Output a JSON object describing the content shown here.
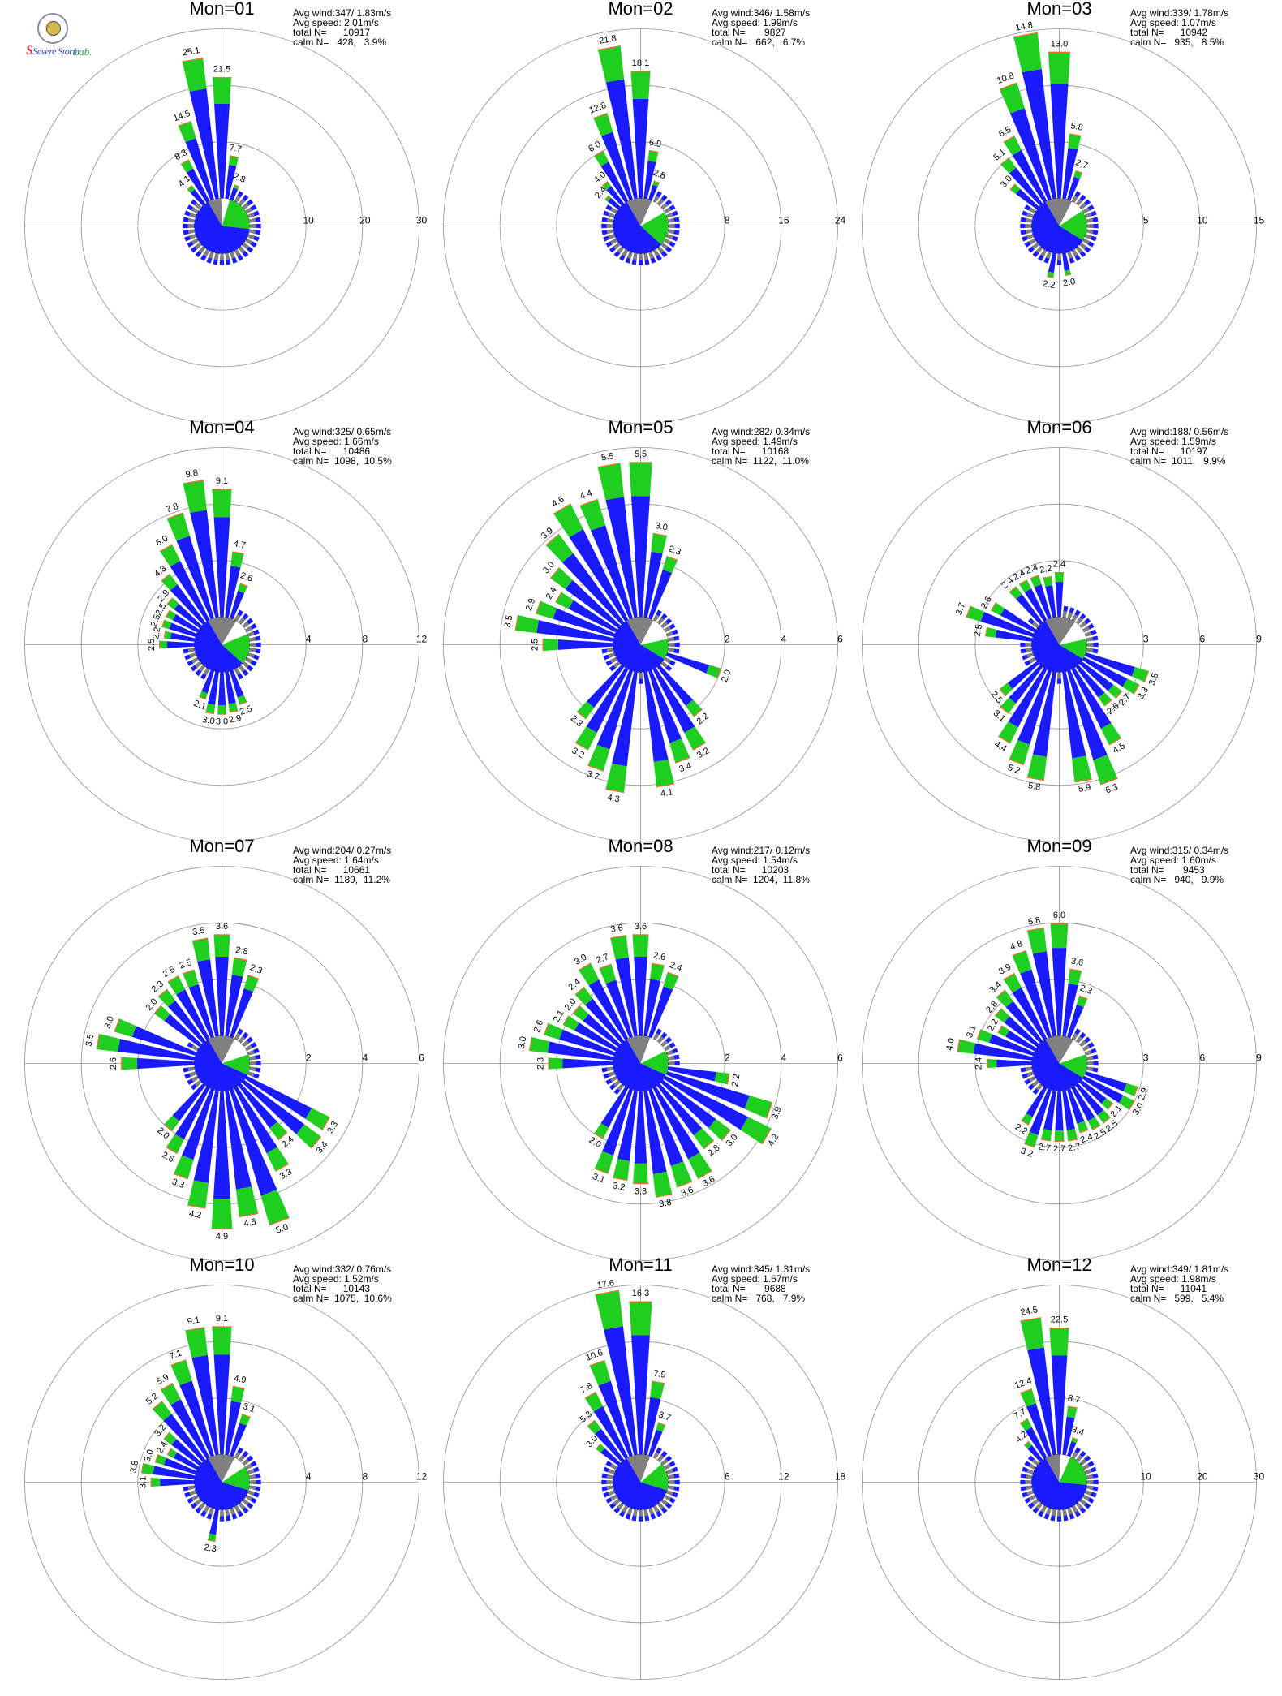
{
  "colors": {
    "blue": "#1a1aff",
    "green": "#1fcf1f",
    "orange": "#ff6a30",
    "grey": "#808080",
    "grid": "#909090"
  },
  "logo": {
    "text1": "Severe Storm",
    "text2": "Lab."
  },
  "chart_data": [
    {
      "type": "wind-rose",
      "title": "Mon=01",
      "stats": [
        "Avg wind:347/ 1.83m/s",
        "Avg speed: 2.01m/s",
        "total N=      10917",
        "calm N=   428,   3.9%"
      ],
      "rmax": 30,
      "ring_labels": [
        "10",
        "20",
        "30"
      ],
      "bars": [
        [
          0,
          21.5
        ],
        [
          350,
          25.1
        ],
        [
          340,
          14.5
        ],
        [
          330,
          8.3
        ],
        [
          320,
          4.1
        ],
        [
          10,
          7.7
        ],
        [
          20,
          2.8
        ]
      ],
      "calm_pie": {
        "blue": 0.65,
        "green": 0.22,
        "grey": 0.08,
        "white": 0.05
      }
    },
    {
      "type": "wind-rose",
      "title": "Mon=02",
      "stats": [
        "Avg wind:346/ 1.58m/s",
        "Avg speed: 1.99m/s",
        "total N=       9827",
        "calm N=   662,   6.7%"
      ],
      "rmax": 24,
      "ring_labels": [
        "8",
        "16",
        "24"
      ],
      "bars": [
        [
          0,
          18.1
        ],
        [
          350,
          21.8
        ],
        [
          340,
          12.8
        ],
        [
          330,
          8.0
        ],
        [
          320,
          4.0
        ],
        [
          310,
          2.4
        ],
        [
          10,
          6.9
        ],
        [
          20,
          2.8
        ]
      ],
      "calm_pie": {
        "blue": 0.55,
        "green": 0.2,
        "grey": 0.15,
        "white": 0.1
      }
    },
    {
      "type": "wind-rose",
      "title": "Mon=03",
      "stats": [
        "Avg wind:339/ 1.78m/s",
        "Avg speed: 1.07m/s",
        "total N=      10942",
        "calm N=   935,   8.5%"
      ],
      "rmax": 15,
      "ring_labels": [
        "5",
        "10",
        "15"
      ],
      "bars": [
        [
          0,
          13.0
        ],
        [
          350,
          14.8
        ],
        [
          340,
          10.8
        ],
        [
          330,
          6.5
        ],
        [
          320,
          5.1
        ],
        [
          310,
          3.0
        ],
        [
          10,
          5.8
        ],
        [
          20,
          2.7
        ],
        [
          170,
          2.0
        ],
        [
          190,
          2.2
        ]
      ],
      "calm_pie": {
        "blue": 0.58,
        "green": 0.18,
        "grey": 0.16,
        "white": 0.08
      }
    },
    {
      "type": "wind-rose",
      "title": "Mon=04",
      "stats": [
        "Avg wind:325/ 0.65m/s",
        "Avg speed: 1.66m/s",
        "total N=      10486",
        "calm N=  1098,  10.5%"
      ],
      "rmax": 12,
      "ring_labels": [
        "4",
        "8",
        "12"
      ],
      "bars": [
        [
          0,
          9.1
        ],
        [
          350,
          9.8
        ],
        [
          340,
          7.8
        ],
        [
          330,
          6.0
        ],
        [
          320,
          4.3
        ],
        [
          310,
          2.9
        ],
        [
          300,
          2.5
        ],
        [
          290,
          2.5
        ],
        [
          280,
          2.2
        ],
        [
          270,
          2.5
        ],
        [
          10,
          4.7
        ],
        [
          20,
          2.6
        ],
        [
          160,
          2.5
        ],
        [
          170,
          2.9
        ],
        [
          180,
          3.0
        ],
        [
          190,
          3.0
        ],
        [
          200,
          2.1
        ]
      ],
      "calm_pie": {
        "blue": 0.55,
        "green": 0.18,
        "grey": 0.17,
        "white": 0.1
      }
    },
    {
      "type": "wind-rose",
      "title": "Mon=05",
      "stats": [
        "Avg wind:282/ 0.34m/s",
        "Avg speed: 1.49m/s",
        "total N=      10168",
        "calm N=  1122,  11.0%"
      ],
      "rmax": 6,
      "ring_labels": [
        "2",
        "4",
        "6"
      ],
      "bars": [
        [
          0,
          5.5
        ],
        [
          350,
          5.5
        ],
        [
          340,
          4.4
        ],
        [
          330,
          4.6
        ],
        [
          320,
          3.9
        ],
        [
          310,
          3.0
        ],
        [
          300,
          2.4
        ],
        [
          290,
          2.9
        ],
        [
          280,
          3.5
        ],
        [
          270,
          2.5
        ],
        [
          10,
          3.0
        ],
        [
          20,
          2.3
        ],
        [
          110,
          2.0
        ],
        [
          140,
          2.2
        ],
        [
          150,
          3.2
        ],
        [
          160,
          3.4
        ],
        [
          170,
          4.1
        ],
        [
          190,
          4.3
        ],
        [
          200,
          3.7
        ],
        [
          210,
          3.2
        ],
        [
          220,
          2.3
        ]
      ],
      "calm_pie": {
        "blue": 0.58,
        "green": 0.12,
        "grey": 0.16,
        "white": 0.14
      }
    },
    {
      "type": "wind-rose",
      "title": "Mon=06",
      "stats": [
        "Avg wind:188/ 0.56m/s",
        "Avg speed: 1.59m/s",
        "total N=      10197",
        "calm N=  1011,   9.9%"
      ],
      "rmax": 9,
      "ring_labels": [
        "3",
        "6",
        "9"
      ],
      "bars": [
        [
          0,
          2.4
        ],
        [
          350,
          2.2
        ],
        [
          340,
          2.4
        ],
        [
          330,
          2.4
        ],
        [
          320,
          2.4
        ],
        [
          300,
          2.6
        ],
        [
          290,
          3.7
        ],
        [
          280,
          2.5
        ],
        [
          110,
          3.5
        ],
        [
          120,
          3.3
        ],
        [
          130,
          2.7
        ],
        [
          140,
          2.6
        ],
        [
          150,
          4.5
        ],
        [
          160,
          6.3
        ],
        [
          170,
          5.9
        ],
        [
          190,
          5.8
        ],
        [
          200,
          5.2
        ],
        [
          210,
          4.4
        ],
        [
          220,
          3.1
        ],
        [
          230,
          2.5
        ]
      ],
      "calm_pie": {
        "blue": 0.58,
        "green": 0.12,
        "grey": 0.18,
        "white": 0.12
      }
    },
    {
      "type": "wind-rose",
      "title": "Mon=07",
      "stats": [
        "Avg wind:204/ 0.27m/s",
        "Avg speed: 1.64m/s",
        "total N=      10661",
        "calm N=  1189,  11.2%"
      ],
      "rmax": 6,
      "ring_labels": [
        "2",
        "4",
        "6"
      ],
      "bars": [
        [
          0,
          3.6
        ],
        [
          350,
          3.5
        ],
        [
          340,
          2.5
        ],
        [
          330,
          2.5
        ],
        [
          320,
          2.3
        ],
        [
          310,
          2.0
        ],
        [
          290,
          3.0
        ],
        [
          280,
          3.5
        ],
        [
          270,
          2.6
        ],
        [
          10,
          2.8
        ],
        [
          20,
          2.3
        ],
        [
          120,
          3.3
        ],
        [
          130,
          3.4
        ],
        [
          140,
          2.4
        ],
        [
          150,
          3.3
        ],
        [
          160,
          5.0
        ],
        [
          170,
          4.5
        ],
        [
          180,
          4.9
        ],
        [
          190,
          4.2
        ],
        [
          200,
          3.3
        ],
        [
          210,
          2.6
        ],
        [
          220,
          2.0
        ]
      ],
      "calm_pie": {
        "blue": 0.6,
        "green": 0.12,
        "grey": 0.16,
        "white": 0.12
      }
    },
    {
      "type": "wind-rose",
      "title": "Mon=08",
      "stats": [
        "Avg wind:217/ 0.12m/s",
        "Avg speed: 1.54m/s",
        "total N=      10203",
        "calm N=  1204,  11.8%"
      ],
      "rmax": 6,
      "ring_labels": [
        "2",
        "4",
        "6"
      ],
      "bars": [
        [
          0,
          3.6
        ],
        [
          350,
          3.6
        ],
        [
          340,
          2.7
        ],
        [
          330,
          3.0
        ],
        [
          320,
          2.4
        ],
        [
          310,
          2.0
        ],
        [
          300,
          2.1
        ],
        [
          290,
          2.6
        ],
        [
          280,
          3.0
        ],
        [
          270,
          2.3
        ],
        [
          10,
          2.6
        ],
        [
          20,
          2.4
        ],
        [
          100,
          2.2
        ],
        [
          110,
          3.9
        ],
        [
          120,
          4.2
        ],
        [
          130,
          3.0
        ],
        [
          140,
          2.8
        ],
        [
          150,
          3.6
        ],
        [
          160,
          3.6
        ],
        [
          170,
          3.8
        ],
        [
          180,
          3.3
        ],
        [
          190,
          3.2
        ],
        [
          200,
          3.1
        ],
        [
          210,
          2.0
        ]
      ],
      "calm_pie": {
        "blue": 0.6,
        "green": 0.14,
        "grey": 0.14,
        "white": 0.12
      }
    },
    {
      "type": "wind-rose",
      "title": "Mon=09",
      "stats": [
        "Avg wind:315/ 0.34m/s",
        "Avg speed: 1.60m/s",
        "total N=       9453",
        "calm N=   940,   9.9%"
      ],
      "rmax": 9,
      "ring_labels": [
        "3",
        "6",
        "9"
      ],
      "bars": [
        [
          0,
          6.0
        ],
        [
          350,
          5.8
        ],
        [
          340,
          4.8
        ],
        [
          330,
          3.9
        ],
        [
          320,
          3.4
        ],
        [
          310,
          2.8
        ],
        [
          300,
          2.2
        ],
        [
          290,
          3.1
        ],
        [
          280,
          4.0
        ],
        [
          270,
          2.4
        ],
        [
          10,
          3.6
        ],
        [
          20,
          2.3
        ],
        [
          110,
          2.9
        ],
        [
          120,
          3.0
        ],
        [
          130,
          2.1
        ],
        [
          140,
          2.5
        ],
        [
          150,
          2.5
        ],
        [
          160,
          2.4
        ],
        [
          170,
          2.7
        ],
        [
          180,
          2.7
        ],
        [
          190,
          2.7
        ],
        [
          200,
          3.2
        ],
        [
          210,
          2.2
        ]
      ],
      "calm_pie": {
        "blue": 0.58,
        "green": 0.14,
        "grey": 0.17,
        "white": 0.11
      }
    },
    {
      "type": "wind-rose",
      "title": "Mon=10",
      "stats": [
        "Avg wind:332/ 0.76m/s",
        "Avg speed: 1.52m/s",
        "total N=      10143",
        "calm N=  1075,  10.6%"
      ],
      "rmax": 12,
      "ring_labels": [
        "4",
        "8",
        "12"
      ],
      "bars": [
        [
          0,
          9.1
        ],
        [
          350,
          9.1
        ],
        [
          340,
          7.1
        ],
        [
          330,
          5.9
        ],
        [
          320,
          5.2
        ],
        [
          310,
          3.2
        ],
        [
          300,
          2.4
        ],
        [
          290,
          3.0
        ],
        [
          280,
          3.8
        ],
        [
          270,
          3.1
        ],
        [
          10,
          4.9
        ],
        [
          20,
          3.1
        ],
        [
          190,
          2.3
        ]
      ],
      "calm_pie": {
        "blue": 0.62,
        "green": 0.14,
        "grey": 0.16,
        "white": 0.08
      }
    },
    {
      "type": "wind-rose",
      "title": "Mon=11",
      "stats": [
        "Avg wind:345/ 1.31m/s",
        "Avg speed: 1.67m/s",
        "total N=       9688",
        "calm N=   768,   7.9%"
      ],
      "rmax": 18,
      "ring_labels": [
        "6",
        "12",
        "18"
      ],
      "bars": [
        [
          0,
          16.3
        ],
        [
          350,
          17.6
        ],
        [
          340,
          10.6
        ],
        [
          330,
          7.8
        ],
        [
          320,
          5.3
        ],
        [
          310,
          3.0
        ],
        [
          10,
          7.9
        ],
        [
          20,
          3.7
        ]
      ],
      "calm_pie": {
        "blue": 0.62,
        "green": 0.16,
        "grey": 0.14,
        "white": 0.08
      }
    },
    {
      "type": "wind-rose",
      "title": "Mon=12",
      "stats": [
        "Avg wind:349/ 1.81m/s",
        "Avg speed: 1.98m/s",
        "total N=      11041",
        "calm N=   599,   5.4%"
      ],
      "rmax": 30,
      "ring_labels": [
        "10",
        "20",
        "30"
      ],
      "bars": [
        [
          0,
          22.5
        ],
        [
          350,
          24.5
        ],
        [
          340,
          12.4
        ],
        [
          330,
          7.7
        ],
        [
          320,
          4.2
        ],
        [
          10,
          8.7
        ],
        [
          20,
          3.4
        ]
      ],
      "calm_pie": {
        "blue": 0.65,
        "green": 0.2,
        "grey": 0.09,
        "white": 0.06
      }
    }
  ]
}
